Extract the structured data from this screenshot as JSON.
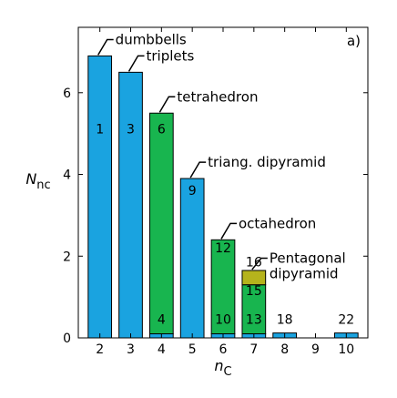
{
  "chart_data": {
    "type": "bar",
    "panel_label": "a)",
    "xlabel": "n",
    "xlabel_sub": "C",
    "ylabel": "N",
    "ylabel_sub": "nc",
    "xlim": [
      1.3,
      10.7
    ],
    "ylim": [
      0,
      7.6
    ],
    "x_ticks": [
      2,
      3,
      4,
      5,
      6,
      7,
      8,
      9,
      10
    ],
    "y_ticks": [
      0,
      2,
      4,
      6
    ],
    "colors": {
      "blue": "#1aa3e0",
      "green": "#18b54f",
      "olive": "#b5b31c",
      "outline": "#000000"
    },
    "bars": [
      {
        "x": 2,
        "segments": [
          {
            "value": 6.9,
            "color": "blue",
            "label": "1",
            "label_y": 5.0
          }
        ]
      },
      {
        "x": 3,
        "segments": [
          {
            "value": 6.5,
            "color": "blue",
            "label": "3",
            "label_y": 5.0
          }
        ]
      },
      {
        "x": 4,
        "segments": [
          {
            "value": 0.1,
            "color": "blue",
            "label": "4",
            "label_y": 0.35
          },
          {
            "value": 5.4,
            "color": "green",
            "label": "6",
            "label_y": 5.0
          }
        ]
      },
      {
        "x": 5,
        "segments": [
          {
            "value": 3.9,
            "color": "blue",
            "label": "9",
            "label_y": 3.5
          }
        ]
      },
      {
        "x": 6,
        "segments": [
          {
            "value": 0.1,
            "color": "blue",
            "label": "10",
            "label_y": 0.35
          },
          {
            "value": 2.3,
            "color": "green",
            "label": "12",
            "label_y": 2.1
          }
        ]
      },
      {
        "x": 7,
        "segments": [
          {
            "value": 0.1,
            "color": "blue",
            "label": "13",
            "label_y": 0.35
          },
          {
            "value": 1.2,
            "color": "green",
            "label": "15",
            "label_y": 1.05
          },
          {
            "value": 0.35,
            "color": "olive",
            "label": "16",
            "label_y": 1.75
          }
        ]
      },
      {
        "x": 8,
        "segments": [
          {
            "value": 0.12,
            "color": "blue",
            "label": "18",
            "label_y": 0.35
          }
        ]
      },
      {
        "x": 9,
        "segments": [
          {
            "value": 0,
            "color": "blue",
            "label": "",
            "label_y": 0
          }
        ]
      },
      {
        "x": 10,
        "segments": [
          {
            "value": 0.12,
            "color": "blue",
            "label": "22",
            "label_y": 0.35
          }
        ]
      }
    ],
    "annotations": [
      {
        "lines": [
          "dumbbells"
        ],
        "bar": 2,
        "y": 7.3
      },
      {
        "lines": [
          "triplets"
        ],
        "bar": 3,
        "y": 6.9
      },
      {
        "lines": [
          "tetrahedron"
        ],
        "bar": 4,
        "y": 5.9
      },
      {
        "lines": [
          "triang. dipyramid"
        ],
        "bar": 5,
        "y": 4.3
      },
      {
        "lines": [
          "octahedron"
        ],
        "bar": 6,
        "y": 2.8
      },
      {
        "lines": [
          "Pentagonal",
          "dipyramid"
        ],
        "bar": 7,
        "y": 1.95
      }
    ]
  }
}
